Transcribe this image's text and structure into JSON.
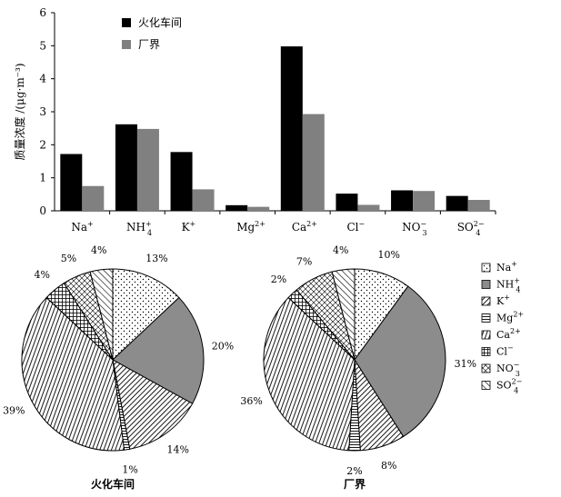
{
  "chart_data": [
    {
      "type": "bar",
      "ylabel": "质量浓度 /(μg·m⁻³)",
      "ylim": [
        0,
        6
      ],
      "yticks": [
        "0",
        "1",
        "2",
        "3",
        "4",
        "5",
        "6"
      ],
      "categories": [
        {
          "base": "Na",
          "sub": "",
          "sup": "+"
        },
        {
          "base": "NH",
          "sub": "4",
          "sup": "+"
        },
        {
          "base": "K",
          "sub": "",
          "sup": "+"
        },
        {
          "base": "Mg",
          "sub": "",
          "sup": "2+"
        },
        {
          "base": "Ca",
          "sub": "",
          "sup": "2+"
        },
        {
          "base": "Cl",
          "sub": "",
          "sup": "−"
        },
        {
          "base": "NO",
          "sub": "3",
          "sup": "−"
        },
        {
          "base": "SO",
          "sub": "4",
          "sup": "2−"
        }
      ],
      "series": [
        {
          "name": "火化车间",
          "color": "#000000",
          "values": [
            1.72,
            2.62,
            1.78,
            0.17,
            4.98,
            0.52,
            0.62,
            0.45
          ]
        },
        {
          "name": "厂界",
          "color": "#808080",
          "values": [
            0.75,
            2.48,
            0.65,
            0.12,
            2.93,
            0.18,
            0.6,
            0.33
          ]
        }
      ],
      "legend_position": "top-left"
    },
    {
      "type": "pie",
      "title": "火化车间",
      "slices": [
        {
          "ion": "Na",
          "value": 13,
          "label": "13%"
        },
        {
          "ion": "NH4",
          "value": 20,
          "label": "20%"
        },
        {
          "ion": "K",
          "value": 14,
          "label": "14%"
        },
        {
          "ion": "Mg",
          "value": 1,
          "label": "1%"
        },
        {
          "ion": "Ca",
          "value": 39,
          "label": "39%"
        },
        {
          "ion": "Cl",
          "value": 4,
          "label": "4%"
        },
        {
          "ion": "NO3",
          "value": 5,
          "label": "5%"
        },
        {
          "ion": "SO4",
          "value": 4,
          "label": "4%"
        }
      ]
    },
    {
      "type": "pie",
      "title": "厂界",
      "slices": [
        {
          "ion": "Na",
          "value": 10,
          "label": "10%"
        },
        {
          "ion": "NH4",
          "value": 31,
          "label": "31%"
        },
        {
          "ion": "K",
          "value": 8,
          "label": "8%"
        },
        {
          "ion": "Mg",
          "value": 2,
          "label": "2%"
        },
        {
          "ion": "Ca",
          "value": 36,
          "label": "36%"
        },
        {
          "ion": "Cl",
          "value": 2,
          "label": "2%"
        },
        {
          "ion": "NO3",
          "value": 7,
          "label": "7%"
        },
        {
          "ion": "SO4",
          "value": 4,
          "label": "4%"
        }
      ]
    }
  ],
  "pie_legend": {
    "position": "right",
    "entries": [
      {
        "ion": "Na",
        "base": "Na",
        "sub": "",
        "sup": "+"
      },
      {
        "ion": "NH4",
        "base": "NH",
        "sub": "4",
        "sup": "+"
      },
      {
        "ion": "K",
        "base": "K",
        "sub": "",
        "sup": "+"
      },
      {
        "ion": "Mg",
        "base": "Mg",
        "sub": "",
        "sup": "2+"
      },
      {
        "ion": "Ca",
        "base": "Ca",
        "sub": "",
        "sup": "2+"
      },
      {
        "ion": "Cl",
        "base": "Cl",
        "sub": "",
        "sup": "−"
      },
      {
        "ion": "NO3",
        "base": "NO",
        "sub": "3",
        "sup": "−"
      },
      {
        "ion": "SO4",
        "base": "SO",
        "sub": "4",
        "sup": "2−"
      }
    ]
  },
  "patterns": {
    "Na": "dots",
    "NH4": "solid-gray",
    "K": "diagonal-dense",
    "Mg": "horizontal",
    "Ca": "vertical",
    "Cl": "grid",
    "NO3": "cross-dots",
    "SO4": "diagonal"
  }
}
